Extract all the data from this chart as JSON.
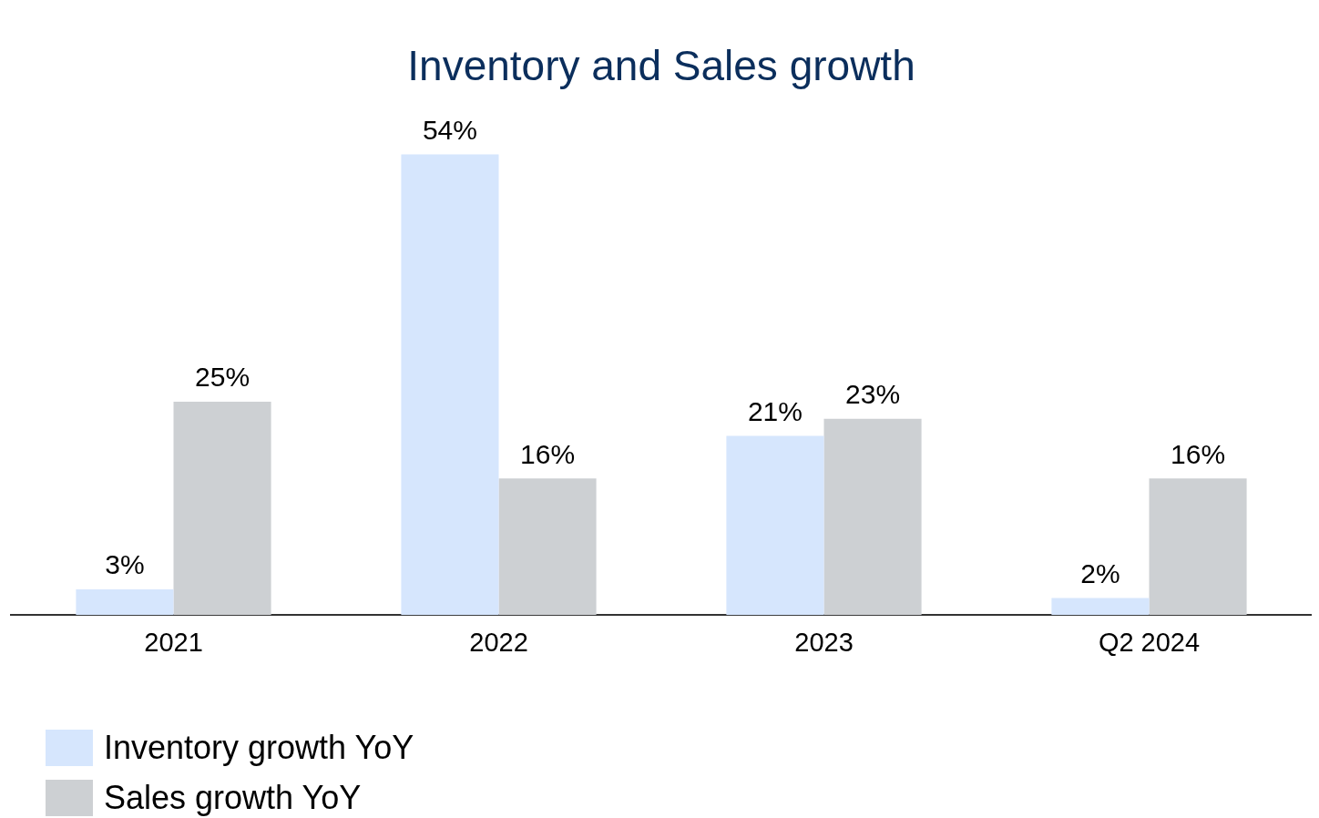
{
  "chart_data": {
    "type": "bar",
    "title": "Inventory and Sales growth",
    "categories": [
      "2021",
      "2022",
      "2023",
      "Q2 2024"
    ],
    "series": [
      {
        "name": "Inventory growth YoY",
        "color": "#d6e6fd",
        "values": [
          3,
          54,
          21,
          2
        ],
        "value_labels": [
          "3%",
          "54%",
          "21%",
          "2%"
        ]
      },
      {
        "name": "Sales growth YoY",
        "color": "#cdd0d3",
        "values": [
          25,
          16,
          23,
          16
        ],
        "value_labels": [
          "25%",
          "16%",
          "23%",
          "16%"
        ]
      }
    ],
    "legend": "bottom left",
    "grid": false
  }
}
